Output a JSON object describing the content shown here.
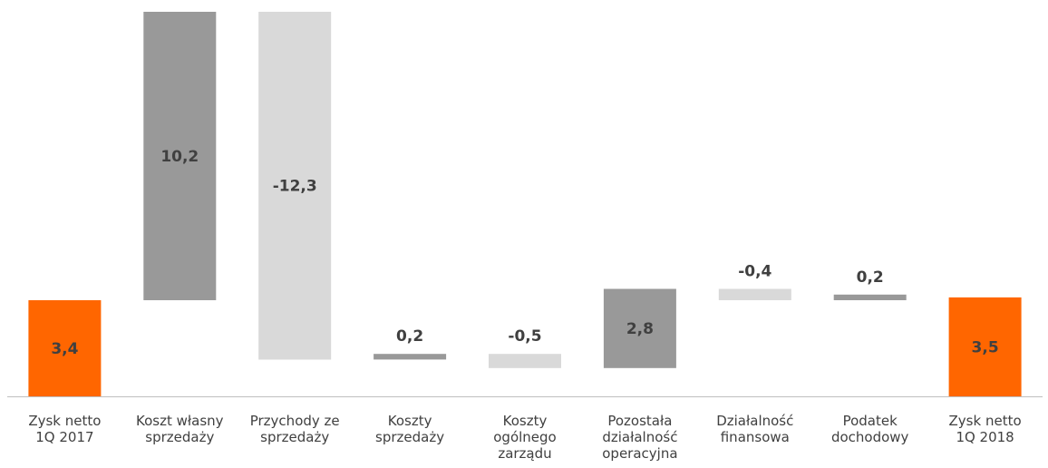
{
  "chart_data": {
    "type": "bar",
    "subtype": "waterfall",
    "title": "",
    "xlabel": "",
    "ylabel": "",
    "grid": false,
    "legend": "none",
    "colors": {
      "total": "#ff6600",
      "increase": "#999999",
      "decrease": "#d9d9d9",
      "axis": "#bfbfbf",
      "label": "#404040"
    },
    "categories": [
      "Zysk netto 1Q 2017",
      "Koszt własny sprzedaży",
      "Przychody ze sprzedaży",
      "Koszty sprzedaży",
      "Koszty ogólnego zarządu",
      "Pozostała działalność operacyjna",
      "Działalność finansowa",
      "Podatek dochodowy",
      "Zysk netto 1Q 2018"
    ],
    "category_lines": [
      [
        "Zysk netto",
        "1Q 2017"
      ],
      [
        "Koszt własny",
        "sprzedaży"
      ],
      [
        "Przychody ze",
        "sprzedaży"
      ],
      [
        "Koszty",
        "sprzedaży"
      ],
      [
        "Koszty",
        "ogólnego",
        "zarządu"
      ],
      [
        "Pozostała",
        "działalność",
        "operacyjna"
      ],
      [
        "Działalność",
        "finansowa"
      ],
      [
        "Podatek",
        "dochodowy"
      ],
      [
        "Zysk netto",
        "1Q 2018"
      ]
    ],
    "values": [
      3.4,
      10.2,
      -12.3,
      0.2,
      -0.5,
      2.8,
      -0.4,
      0.2,
      3.5
    ],
    "value_labels": [
      "3,4",
      "10,2",
      "-12,3",
      "0,2",
      "-0,5",
      "2,8",
      "-0,4",
      "0,2",
      "3,5"
    ],
    "kinds": [
      "total",
      "delta",
      "delta",
      "delta",
      "delta",
      "delta",
      "delta",
      "delta",
      "total"
    ],
    "ylim": [
      0,
      13.6
    ]
  }
}
